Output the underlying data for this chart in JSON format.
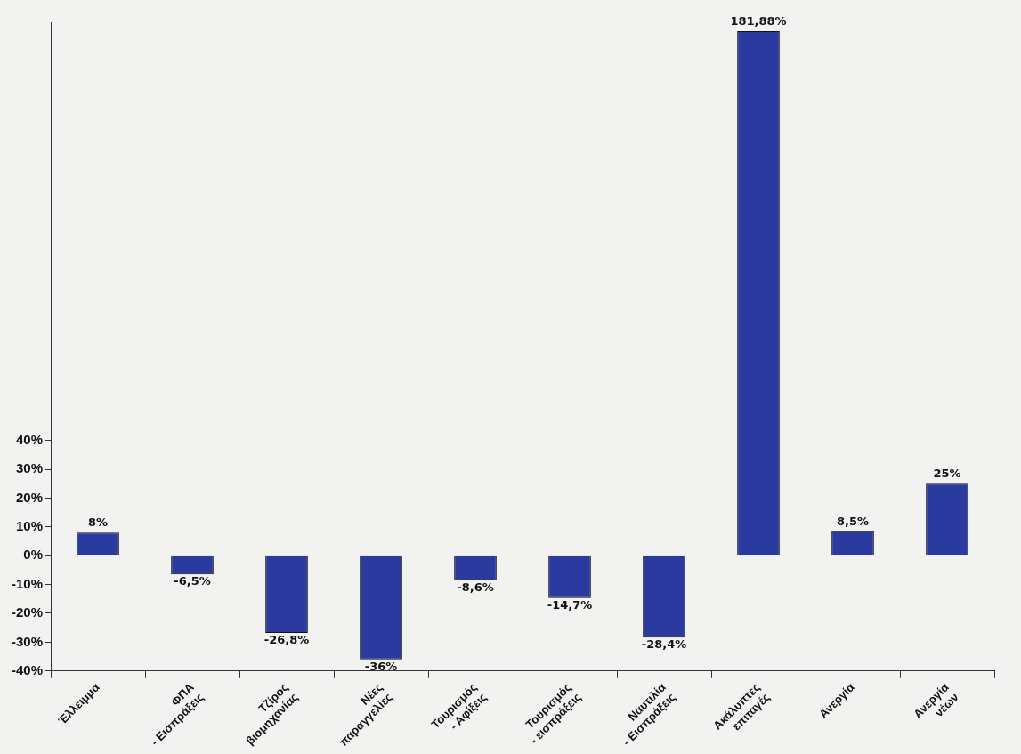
{
  "chart_data": {
    "type": "bar",
    "categories": [
      "Έλλειμμα",
      "ΦΠΑ - Εισπράξεις",
      "Τζίρος βιομηχανίας",
      "Νέες παραγγελίες",
      "Τουρισμός - Αφίξεις",
      "Τουρισμός - εισπράξεις",
      "Ναυτιλία - Εισπράξεις",
      "Ακάλυπτες επιταγές",
      "Ανεργία",
      "Ανεργία νέων"
    ],
    "values": [
      8,
      -6.5,
      -26.8,
      -36,
      -8.6,
      -14.7,
      -28.4,
      181.88,
      8.5,
      25
    ],
    "value_labels": [
      "8%",
      "-6,5%",
      "-26,8%",
      "-36%",
      "-8,6%",
      "-14,7%",
      "-28,4%",
      "181,88%",
      "8,5%",
      "25%"
    ],
    "color": "#2a3a9e",
    "ylim": [
      -40,
      185
    ],
    "yticks": [
      {
        "value": -40,
        "label": "-40%"
      },
      {
        "value": -30,
        "label": "-30%"
      },
      {
        "value": -20,
        "label": "-20%"
      },
      {
        "value": -10,
        "label": "-10%"
      },
      {
        "value": 0,
        "label": "0%"
      },
      {
        "value": 10,
        "label": "10%"
      },
      {
        "value": 20,
        "label": "20%"
      },
      {
        "value": 30,
        "label": "30%"
      },
      {
        "value": 40,
        "label": "40%"
      }
    ],
    "grid": false,
    "legend": false
  }
}
